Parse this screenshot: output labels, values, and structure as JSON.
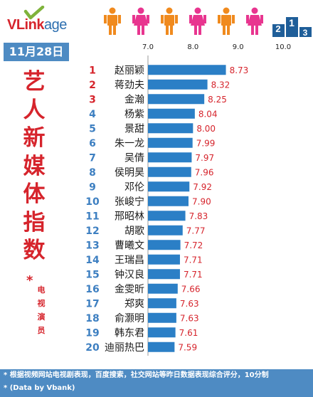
{
  "brand": {
    "logo_main": "VLink",
    "logo_suffix": "age"
  },
  "date": "11月28日",
  "side_title_chars": [
    "艺",
    "人",
    "新",
    "媒",
    "体",
    "指",
    "数"
  ],
  "side_star": "*",
  "side_sub_chars": [
    "电",
    "视",
    "演",
    "员"
  ],
  "footer": {
    "line1": "* 根据视频网站电视剧表现，百度搜索，社交网站等昨日数据表现综合评分，10分制",
    "line2": "* (Data by Vbank)"
  },
  "colors": {
    "accent_red": "#d6242c",
    "bar_blue": "#2b7fc6",
    "rank_blue": "#3d7fc1",
    "value_red": "#d6242c",
    "header_blue": "#4e8bc3",
    "people_orange": "#f08a1e",
    "people_pink": "#e8358f"
  },
  "chart_data": {
    "type": "bar",
    "orientation": "horizontal",
    "axis_ticks": [
      "7.0",
      "8.0",
      "9.0",
      "10.0"
    ],
    "xlim": [
      7.0,
      10.0
    ],
    "grid": false,
    "rows": [
      {
        "rank": "1",
        "name": "赵丽颖",
        "value": 8.73,
        "label": "8.73"
      },
      {
        "rank": "2",
        "name": "蒋劲夫",
        "value": 8.32,
        "label": "8.32"
      },
      {
        "rank": "3",
        "name": "金瀚",
        "value": 8.25,
        "label": "8.25"
      },
      {
        "rank": "4",
        "name": "杨紫",
        "value": 8.04,
        "label": "8.04"
      },
      {
        "rank": "5",
        "name": "景甜",
        "value": 8.0,
        "label": "8.00"
      },
      {
        "rank": "6",
        "name": "朱一龙",
        "value": 7.99,
        "label": "7.99"
      },
      {
        "rank": "7",
        "name": "吴倩",
        "value": 7.97,
        "label": "7.97"
      },
      {
        "rank": "8",
        "name": "侯明昊",
        "value": 7.96,
        "label": "7.96"
      },
      {
        "rank": "9",
        "name": "邓伦",
        "value": 7.92,
        "label": "7.92"
      },
      {
        "rank": "10",
        "name": "张峻宁",
        "value": 7.9,
        "label": "7.90"
      },
      {
        "rank": "11",
        "name": "邢昭林",
        "value": 7.83,
        "label": "7.83"
      },
      {
        "rank": "12",
        "name": "胡歌",
        "value": 7.77,
        "label": "7.77"
      },
      {
        "rank": "13",
        "name": "曹曦文",
        "value": 7.72,
        "label": "7.72"
      },
      {
        "rank": "14",
        "name": "王瑞昌",
        "value": 7.71,
        "label": "7.71"
      },
      {
        "rank": "15",
        "name": "钟汉良",
        "value": 7.71,
        "label": "7.71"
      },
      {
        "rank": "16",
        "name": "金雯昕",
        "value": 7.66,
        "label": "7.66"
      },
      {
        "rank": "17",
        "name": "郑爽",
        "value": 7.63,
        "label": "7.63"
      },
      {
        "rank": "18",
        "name": "俞灏明",
        "value": 7.63,
        "label": "7.63"
      },
      {
        "rank": "19",
        "name": "韩东君",
        "value": 7.61,
        "label": "7.61"
      },
      {
        "rank": "20",
        "name": "迪丽热巴",
        "value": 7.59,
        "label": "7.59"
      }
    ]
  }
}
